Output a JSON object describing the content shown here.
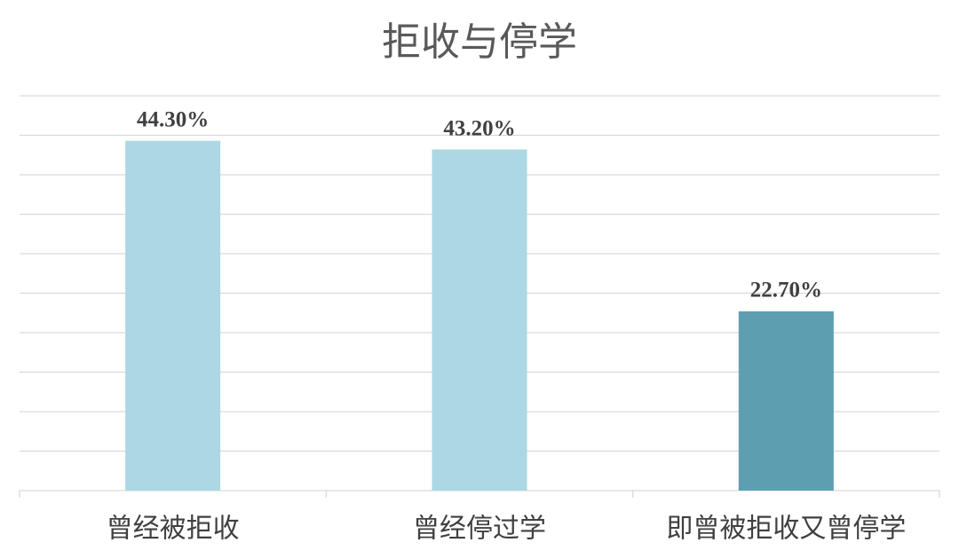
{
  "chart_data": {
    "type": "bar",
    "title": "拒收与停学",
    "categories": [
      "曾经被拒收",
      "曾经停过学",
      "即曾被拒收又曾停学"
    ],
    "values": [
      44.3,
      43.2,
      22.7
    ],
    "value_labels": [
      "44.30%",
      "43.20%",
      "22.70%"
    ],
    "colors": [
      "#acd8e4",
      "#acd8e4",
      "#5d9fb1"
    ],
    "ylim": [
      0,
      50
    ],
    "yticks": [
      0,
      5,
      10,
      15,
      20,
      25,
      30,
      35,
      40,
      45,
      50
    ],
    "grid": true
  }
}
